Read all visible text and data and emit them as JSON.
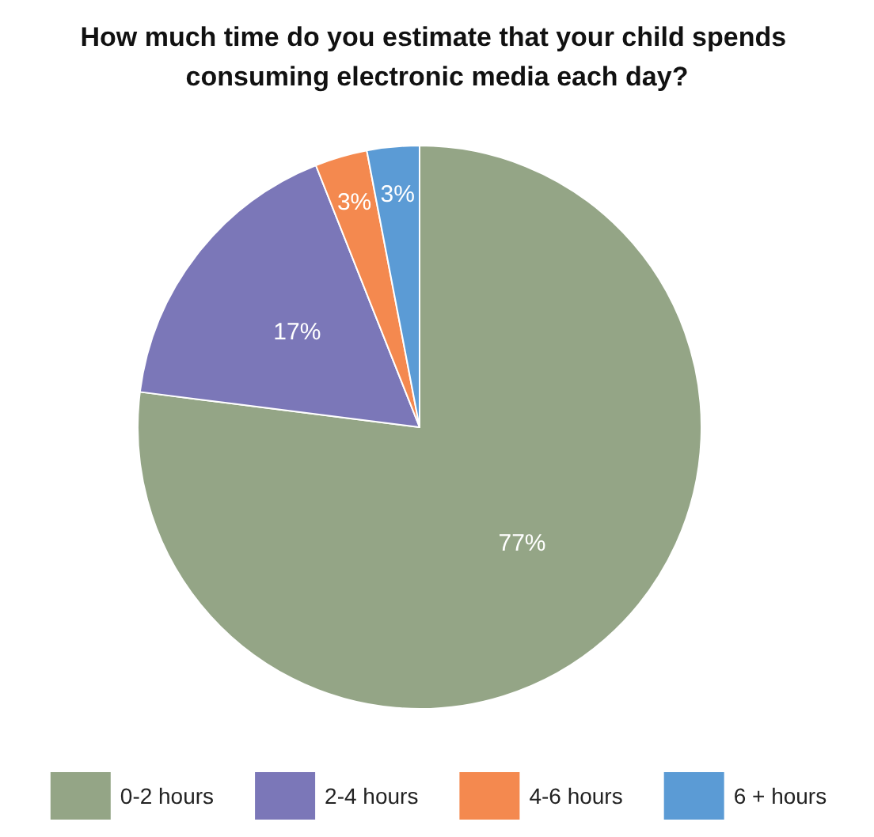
{
  "chart_data": {
    "type": "pie",
    "title": "How much time do you estimate that your child spends consuming electronic media each day?",
    "categories": [
      "0-2 hours",
      "2-4 hours",
      "4-6 hours",
      "6 + hours"
    ],
    "values": [
      77,
      17,
      3,
      3
    ],
    "colors": [
      "#94a586",
      "#7b77b8",
      "#f4894f",
      "#5b9bd5"
    ],
    "value_labels": [
      "77%",
      "17%",
      "3%",
      "3%"
    ],
    "legend": "bottom"
  }
}
